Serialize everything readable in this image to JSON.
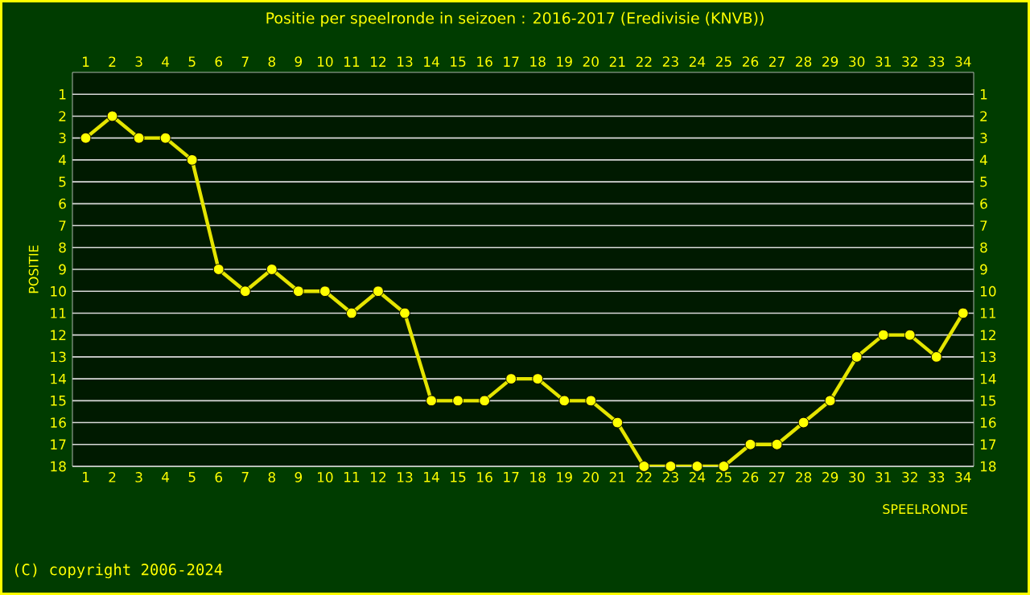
{
  "chart_data": {
    "type": "line",
    "title": "Positie per speelronde in seizoen : 2016-2017 (Eredivisie (KNVB))",
    "xlabel": "SPEELRONDE",
    "ylabel": "POSITIE",
    "annotations": [
      "(C) copyright 2006-2024"
    ],
    "x": [
      1,
      2,
      3,
      4,
      5,
      6,
      7,
      8,
      9,
      10,
      11,
      12,
      13,
      14,
      15,
      16,
      17,
      18,
      19,
      20,
      21,
      22,
      23,
      24,
      25,
      26,
      27,
      28,
      29,
      30,
      31,
      32,
      33,
      34
    ],
    "values": [
      3,
      2,
      3,
      3,
      4,
      9,
      10,
      9,
      10,
      10,
      11,
      10,
      11,
      15,
      15,
      15,
      14,
      14,
      15,
      15,
      16,
      18,
      18,
      18,
      18,
      17,
      17,
      16,
      15,
      13,
      12,
      12,
      13,
      11
    ],
    "color": "#ffff00",
    "marker": "circle",
    "line_style": "solid",
    "grid": "y",
    "xlim": [
      0.5,
      34.4
    ],
    "xticks": [
      1,
      2,
      3,
      4,
      5,
      6,
      7,
      8,
      9,
      10,
      11,
      12,
      13,
      14,
      15,
      16,
      17,
      18,
      19,
      20,
      21,
      22,
      23,
      24,
      25,
      26,
      27,
      28,
      29,
      30,
      31,
      32,
      33,
      34
    ],
    "x2lim": [
      0.5,
      34.4
    ],
    "x2ticks": [
      1,
      2,
      3,
      4,
      5,
      6,
      7,
      8,
      9,
      10,
      11,
      12,
      13,
      14,
      15,
      16,
      17,
      18,
      19,
      20,
      21,
      22,
      23,
      24,
      25,
      26,
      27,
      28,
      29,
      30,
      31,
      32,
      33,
      34
    ],
    "ylim": [
      18,
      0
    ],
    "yticks": [
      1,
      2,
      3,
      4,
      5,
      6,
      7,
      8,
      9,
      10,
      11,
      12,
      13,
      14,
      15,
      16,
      17,
      18
    ],
    "y2lim": [
      18,
      0
    ],
    "y2ticks": [
      1,
      2,
      3,
      4,
      5,
      6,
      7,
      8,
      9,
      10,
      11,
      12,
      13,
      14,
      15,
      16,
      17,
      18
    ]
  }
}
